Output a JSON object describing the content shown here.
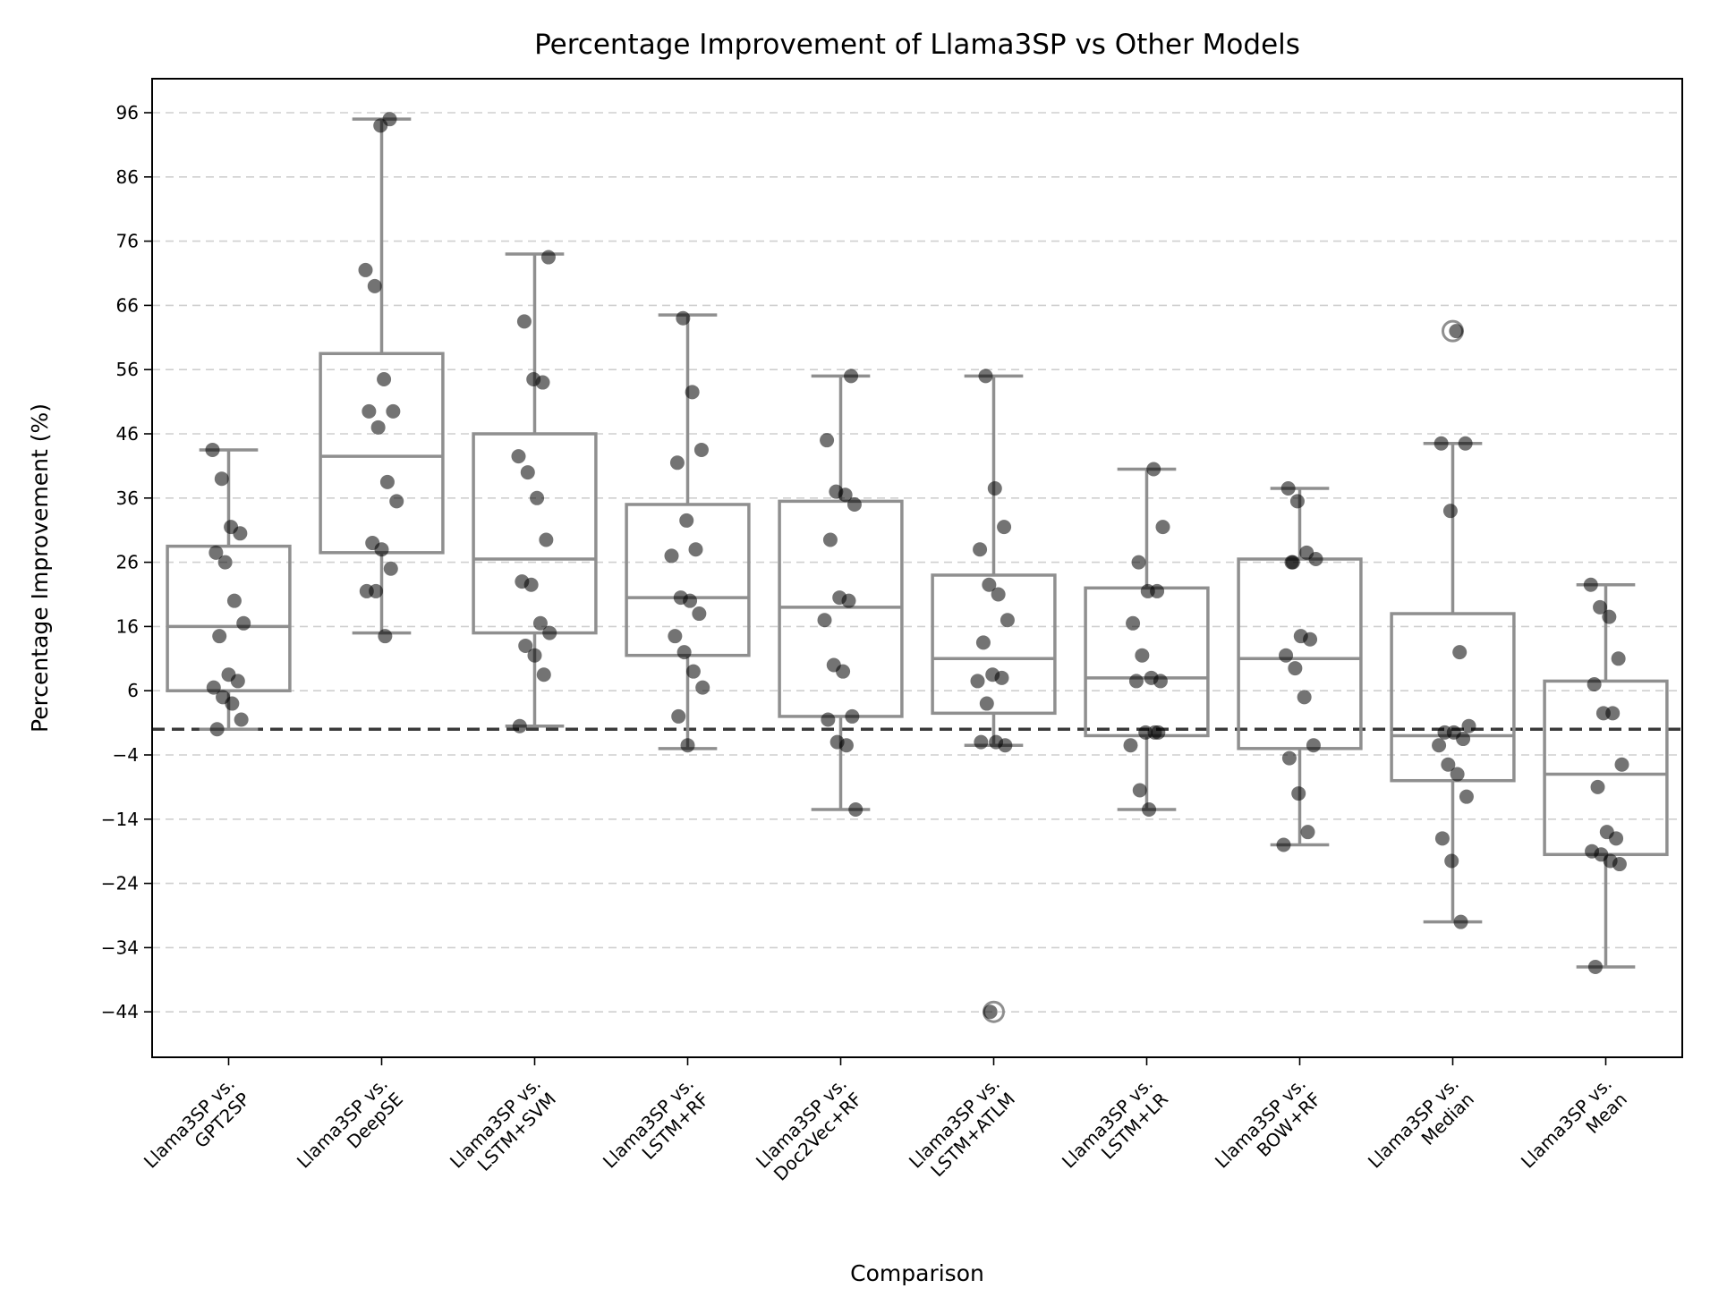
{
  "chart_data": {
    "type": "box",
    "title": "Percentage Improvement of Llama3SP vs Other Models",
    "xlabel": "Comparison",
    "ylabel": "Percentage Improvement (%)",
    "ylim": [
      -51,
      101
    ],
    "yticks": [
      96,
      86,
      76,
      66,
      56,
      46,
      36,
      26,
      16,
      6,
      -4,
      -14,
      -24,
      -34,
      -44
    ],
    "ytick_labels": [
      "96",
      "86",
      "76",
      "66",
      "56",
      "46",
      "36",
      "26",
      "16",
      "6",
      "−4",
      "−14",
      "−24",
      "−34",
      "−44"
    ],
    "grid": "horizontal dashed",
    "reference_line": 0,
    "colors": {
      "box": "#8f8f8f",
      "points": "#000000",
      "reference": "#3a3a3a",
      "grid": "#cfcfcf"
    },
    "categories": [
      [
        "Llama3SP vs.",
        "GPT2SP"
      ],
      [
        "Llama3SP vs.",
        "DeepSE"
      ],
      [
        "Llama3SP vs.",
        "LSTM+SVM"
      ],
      [
        "Llama3SP vs.",
        "LSTM+RF"
      ],
      [
        "Llama3SP vs.",
        "Doc2Vec+RF"
      ],
      [
        "Llama3SP vs.",
        "LSTM+ATLM"
      ],
      [
        "Llama3SP vs.",
        "LSTM+LR"
      ],
      [
        "Llama3SP vs.",
        "BOW+RF"
      ],
      [
        "Llama3SP vs.",
        "Median"
      ],
      [
        "Llama3SP vs.",
        "Mean"
      ]
    ],
    "boxes": [
      {
        "q1": 6,
        "median": 16,
        "q3": 28.5,
        "whisker_low": 0,
        "whisker_high": 43.5,
        "outliers": []
      },
      {
        "q1": 27.5,
        "median": 42.5,
        "q3": 58.5,
        "whisker_low": 15,
        "whisker_high": 95,
        "outliers": []
      },
      {
        "q1": 15,
        "median": 26.5,
        "q3": 46,
        "whisker_low": 0.5,
        "whisker_high": 74,
        "outliers": []
      },
      {
        "q1": 11.5,
        "median": 20.5,
        "q3": 35,
        "whisker_low": -3,
        "whisker_high": 64.5,
        "outliers": []
      },
      {
        "q1": 2,
        "median": 19,
        "q3": 35.5,
        "whisker_low": -12.5,
        "whisker_high": 55,
        "outliers": []
      },
      {
        "q1": 2.5,
        "median": 11,
        "q3": 24,
        "whisker_low": -2.5,
        "whisker_high": 55,
        "outliers": [
          -44
        ]
      },
      {
        "q1": -1,
        "median": 8,
        "q3": 22,
        "whisker_low": -12.5,
        "whisker_high": 40.5,
        "outliers": []
      },
      {
        "q1": -3,
        "median": 11,
        "q3": 26.5,
        "whisker_low": -18,
        "whisker_high": 37.5,
        "outliers": []
      },
      {
        "q1": -8,
        "median": -1,
        "q3": 18,
        "whisker_low": -30,
        "whisker_high": 44.5,
        "outliers": [
          62
        ]
      },
      {
        "q1": -19.5,
        "median": -7,
        "q3": 7.5,
        "whisker_low": -37,
        "whisker_high": 22.5,
        "outliers": []
      }
    ],
    "points": [
      [
        43.5,
        39,
        31.5,
        30.5,
        27.5,
        26,
        20,
        16.5,
        14.5,
        8.5,
        7.5,
        6.5,
        5,
        4,
        1.5,
        0
      ],
      [
        94,
        95,
        71.5,
        69,
        54.5,
        49.5,
        49.5,
        47,
        38.5,
        35.5,
        29,
        28,
        25,
        21.5,
        21.5,
        14.5
      ],
      [
        73.5,
        63.5,
        54.5,
        54,
        42.5,
        40,
        36,
        29.5,
        23,
        22.5,
        16.5,
        15,
        13,
        11.5,
        8.5,
        0.5
      ],
      [
        64,
        52.5,
        43.5,
        41.5,
        32.5,
        28,
        27,
        20.5,
        20,
        18,
        14.5,
        12,
        9,
        6.5,
        2,
        -2.5
      ],
      [
        55,
        45,
        37,
        36.5,
        35,
        29.5,
        20.5,
        20,
        17,
        10,
        9,
        2,
        1.5,
        -2,
        -2.5,
        -12.5
      ],
      [
        55,
        37.5,
        31.5,
        28,
        22.5,
        21,
        17,
        13.5,
        8.5,
        8,
        7.5,
        4,
        -2,
        -2.5,
        -2,
        -44
      ],
      [
        40.5,
        31.5,
        26,
        21.5,
        21.5,
        16.5,
        11.5,
        8,
        7.5,
        7.5,
        -0.5,
        -0.5,
        -2.5,
        -9.5,
        -12.5,
        -0.5
      ],
      [
        37.5,
        35.5,
        27.5,
        26.5,
        26,
        14.5,
        14,
        11.5,
        9.5,
        5,
        -2.5,
        -4.5,
        -10,
        -16,
        -18,
        26
      ],
      [
        62,
        44.5,
        44.5,
        34,
        12,
        0.5,
        -0.5,
        -0.5,
        -1.5,
        -2.5,
        -5.5,
        -7,
        -10.5,
        -17,
        -20.5,
        -30
      ],
      [
        22.5,
        19,
        17.5,
        11,
        7,
        2.5,
        2.5,
        -5.5,
        -9,
        -16,
        -17,
        -19,
        -19.5,
        -20.5,
        -21,
        -37
      ]
    ]
  }
}
